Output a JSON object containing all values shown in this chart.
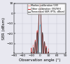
{
  "xlabel": "Observation angle (°)",
  "ylabel": "SER (dBsm)",
  "xlim": [
    -90,
    90
  ],
  "ylim": [
    -40,
    10
  ],
  "yticks": [
    -30,
    -20,
    -10,
    0,
    10
  ],
  "xticks": [
    -90,
    -60,
    -30,
    0,
    30,
    60,
    90
  ],
  "legend": [
    {
      "label": "Markov calibration (VV)",
      "color": "#ee8888"
    },
    {
      "label": "Other calibration (VV/HH)",
      "color": "#cc2222"
    },
    {
      "label": "Theoretical SER (PTS, dBsm)",
      "color": "#444444"
    }
  ],
  "curve_markov_color": "#ee9999",
  "curve_other_color": "#cc3333",
  "curve_theory_color": "#333333",
  "curve_cyan_color": "#55ccee",
  "bg_color": "#e8e8f0",
  "grid_color": "#bbbbcc",
  "fontsize": 4.0,
  "tick_fontsize": 3.2,
  "legend_fontsize": 2.4
}
